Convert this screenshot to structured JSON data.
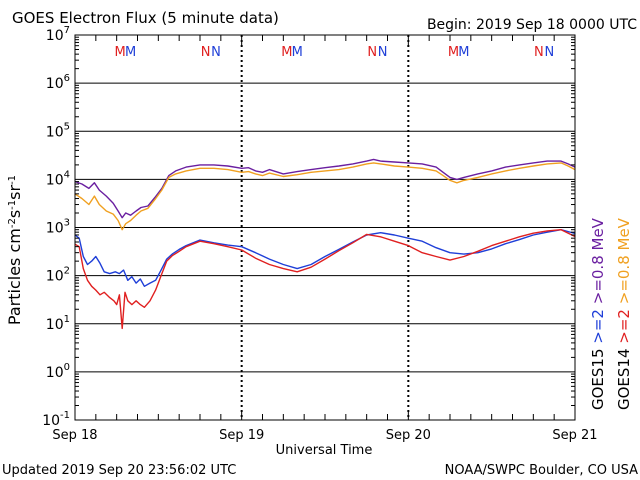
{
  "header": {
    "title": "GOES Electron Flux (5 minute data)",
    "begin": "Begin: 2019 Sep 18 0000 UTC"
  },
  "footer": {
    "updated": "Updated 2019 Sep 20 23:56:02 UTC",
    "credit": "NOAA/SWPC Boulder, CO USA"
  },
  "chart_data": {
    "type": "line",
    "title": "GOES Electron Flux (5 minute data)",
    "xlabel": "Universal Time",
    "ylabel": "Particles cm-2s-1sr-1",
    "yscale": "log",
    "ylim": [
      0.1,
      10000000
    ],
    "xlim": [
      0,
      72
    ],
    "x_unit": "hours since 2019 Sep 18 0000 UTC",
    "x_ticks": [
      {
        "x": 0,
        "label": "Sep 18"
      },
      {
        "x": 24,
        "label": "Sep 19"
      },
      {
        "x": 48,
        "label": "Sep 20"
      },
      {
        "x": 72,
        "label": "Sep 21"
      }
    ],
    "y_ticks": [
      {
        "exp": -1,
        "label": "10",
        "sup": "-1"
      },
      {
        "exp": 0,
        "label": "10",
        "sup": "0"
      },
      {
        "exp": 1,
        "label": "10",
        "sup": "1"
      },
      {
        "exp": 2,
        "label": "10",
        "sup": "2"
      },
      {
        "exp": 3,
        "label": "10",
        "sup": "3"
      },
      {
        "exp": 4,
        "label": "10",
        "sup": "4"
      },
      {
        "exp": 5,
        "label": "10",
        "sup": "5"
      },
      {
        "exp": 6,
        "label": "10",
        "sup": "6"
      },
      {
        "exp": 7,
        "label": "10",
        "sup": "7"
      }
    ],
    "threshold": 1000,
    "grid": true,
    "legend_position": "right",
    "legend": [
      {
        "label": "GOES15",
        "color": "#000000"
      },
      {
        "label": ">=2",
        "color": "#1f3fd8"
      },
      {
        "label": ">=0.8 MeV",
        "color": "#6a1fa0"
      },
      {
        "label": "GOES14",
        "color": "#000000"
      },
      {
        "label": ">=2",
        "color": "#e02020"
      },
      {
        "label": ">=0.8 MeV",
        "color": "#f0a020"
      }
    ],
    "annotations": [
      {
        "x": 6.5,
        "text": "M",
        "color": "#e02020"
      },
      {
        "x": 8.0,
        "text": "M",
        "color": "#1f3fd8"
      },
      {
        "x": 18.8,
        "text": "N",
        "color": "#e02020"
      },
      {
        "x": 20.3,
        "text": "N",
        "color": "#1f3fd8"
      },
      {
        "x": 30.5,
        "text": "M",
        "color": "#e02020"
      },
      {
        "x": 32.0,
        "text": "M",
        "color": "#1f3fd8"
      },
      {
        "x": 42.8,
        "text": "N",
        "color": "#e02020"
      },
      {
        "x": 44.3,
        "text": "N",
        "color": "#1f3fd8"
      },
      {
        "x": 54.5,
        "text": "M",
        "color": "#e02020"
      },
      {
        "x": 56.0,
        "text": "M",
        "color": "#1f3fd8"
      },
      {
        "x": 66.8,
        "text": "N",
        "color": "#e02020"
      },
      {
        "x": 68.3,
        "text": "N",
        "color": "#1f3fd8"
      }
    ],
    "series": [
      {
        "color": "#6a1fa0",
        "x": [
          0,
          1,
          2,
          2.8,
          3.5,
          4.5,
          5.5,
          6.2,
          6.8,
          7.3,
          8,
          8.8,
          9.5,
          10.5,
          11.5,
          12.5,
          13.5,
          14.5,
          16,
          18,
          20,
          22,
          24,
          25,
          26,
          27,
          28,
          30,
          32,
          34,
          36,
          38,
          40,
          42,
          43,
          44,
          46,
          48,
          50,
          52,
          53,
          54,
          55,
          56,
          58,
          60,
          62,
          64,
          66,
          68,
          70,
          71,
          72
        ],
        "y": [
          9000,
          8000,
          6500,
          8500,
          6000,
          4500,
          3200,
          2200,
          1600,
          2000,
          1800,
          2200,
          2600,
          2800,
          4200,
          6500,
          12000,
          15000,
          18000,
          20000,
          20000,
          19000,
          17000,
          17500,
          15000,
          14000,
          16000,
          13000,
          14500,
          16000,
          17500,
          19000,
          21000,
          24000,
          26000,
          24000,
          23000,
          22000,
          21000,
          18000,
          14000,
          11000,
          10000,
          11000,
          13000,
          15000,
          18000,
          20000,
          22000,
          24000,
          24000,
          21000,
          18000
        ]
      },
      {
        "color": "#f0a020",
        "x": [
          0,
          1,
          2,
          2.8,
          3.5,
          4.5,
          5.5,
          6.2,
          6.8,
          7.3,
          8,
          8.8,
          9.5,
          10.5,
          11.5,
          12.5,
          13.5,
          14.5,
          16,
          18,
          20,
          22,
          24,
          25,
          26,
          27,
          28,
          30,
          32,
          34,
          36,
          38,
          40,
          42,
          43,
          44,
          46,
          48,
          50,
          52,
          53,
          54,
          55,
          56,
          58,
          60,
          62,
          64,
          66,
          68,
          70,
          71,
          72
        ],
        "y": [
          5000,
          4000,
          3000,
          4500,
          3000,
          2200,
          1900,
          1400,
          900,
          1200,
          1400,
          1800,
          2200,
          2500,
          3800,
          6000,
          11000,
          13000,
          15000,
          17000,
          17000,
          16000,
          14000,
          14500,
          13000,
          12000,
          13500,
          11500,
          12500,
          14000,
          15000,
          16000,
          18000,
          21000,
          22000,
          21000,
          19000,
          18000,
          17000,
          15000,
          12000,
          9500,
          8500,
          9500,
          11000,
          13000,
          15000,
          17000,
          19000,
          21000,
          22000,
          19000,
          16000
        ]
      },
      {
        "color": "#1f3fd8",
        "x": [
          0,
          0.6,
          1.2,
          1.8,
          2.4,
          3,
          3.6,
          4.2,
          5,
          5.8,
          6.4,
          7,
          7.6,
          8.2,
          8.8,
          9.4,
          10,
          10.8,
          11.6,
          12.4,
          13.2,
          14,
          15,
          16,
          18,
          20,
          22,
          24,
          26,
          28,
          30,
          32,
          34,
          36,
          38,
          40,
          42,
          44,
          46,
          48,
          50,
          52,
          54,
          56,
          58,
          60,
          62,
          64,
          66,
          68,
          70,
          72
        ],
        "y": [
          700,
          600,
          250,
          170,
          200,
          250,
          180,
          120,
          110,
          120,
          110,
          130,
          80,
          95,
          70,
          85,
          60,
          70,
          80,
          130,
          220,
          280,
          350,
          420,
          550,
          480,
          430,
          400,
          300,
          220,
          170,
          140,
          170,
          250,
          350,
          500,
          700,
          780,
          700,
          600,
          520,
          380,
          300,
          280,
          300,
          360,
          460,
          560,
          700,
          800,
          900,
          750
        ]
      },
      {
        "color": "#e02020",
        "x": [
          0,
          0.6,
          1.2,
          1.8,
          2.4,
          3,
          3.6,
          4.2,
          5,
          5.6,
          6.0,
          6.4,
          6.8,
          7.2,
          7.6,
          8.2,
          8.8,
          9.4,
          10,
          10.8,
          11.6,
          12.4,
          13.2,
          14,
          15,
          16,
          18,
          20,
          22,
          24,
          26,
          28,
          30,
          32,
          34,
          36,
          38,
          40,
          42,
          44,
          46,
          48,
          50,
          52,
          54,
          56,
          58,
          60,
          62,
          64,
          66,
          68,
          70,
          72
        ],
        "y": [
          450,
          400,
          140,
          80,
          60,
          50,
          40,
          45,
          35,
          30,
          25,
          40,
          8,
          45,
          30,
          25,
          30,
          25,
          22,
          30,
          50,
          100,
          200,
          260,
          320,
          400,
          520,
          460,
          400,
          340,
          230,
          170,
          140,
          120,
          150,
          220,
          330,
          480,
          720,
          640,
          520,
          420,
          300,
          250,
          210,
          250,
          320,
          420,
          520,
          640,
          760,
          850,
          900,
          650
        ]
      }
    ]
  }
}
